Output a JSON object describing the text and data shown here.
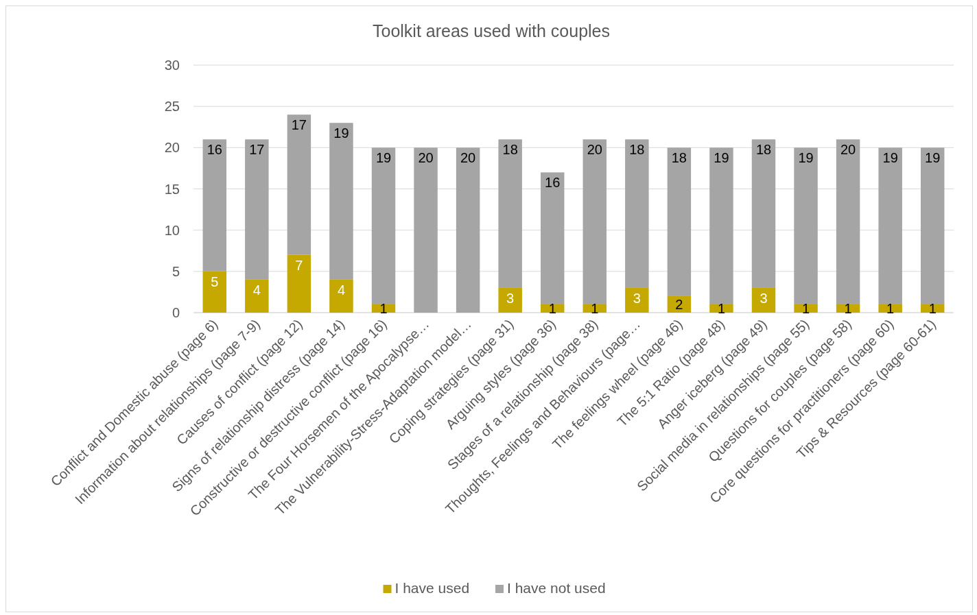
{
  "chart_data": {
    "type": "bar",
    "title": "Toolkit areas used with couples",
    "stacked": true,
    "categories": [
      "Conflict and Domestic abuse (page 6)",
      "Information about relationships (page 7-9)",
      "Causes of conflict (page 12)",
      "Signs of relationship distress (page 14)",
      "Constructive or destructive conflict (page 16)",
      "The Four Horsemen of the Apocalypse…",
      "The Vulnerability-Stress-Adaptation model…",
      "Coping strategies (page 31)",
      "Arguing styles (page 36)",
      "Stages of a relationship (page 38)",
      "Thoughts, Feelings and Behaviours (page…",
      "The feelings wheel (page 46)",
      "The 5:1 Ratio (page 48)",
      "Anger iceberg (page 49)",
      "Social media in relationships (page 55)",
      "Questions for couples (page 58)",
      "Core questions for practitioners (page 60)",
      "Tips & Resources (page 60-61)"
    ],
    "series": [
      {
        "name": "I have used",
        "color": "#c5a800",
        "values": [
          5,
          4,
          7,
          4,
          1,
          0,
          0,
          3,
          1,
          1,
          3,
          2,
          1,
          3,
          1,
          1,
          1,
          1
        ],
        "value_labels": [
          "5",
          "4",
          "7",
          "4",
          "1",
          null,
          null,
          "3",
          "1",
          "1",
          "3",
          "2",
          "1",
          "3",
          "1",
          "1",
          "1",
          "1"
        ]
      },
      {
        "name": "I have not used",
        "color": "#a5a5a5",
        "values": [
          16,
          17,
          17,
          19,
          19,
          20,
          20,
          18,
          16,
          20,
          18,
          18,
          19,
          18,
          19,
          20,
          19,
          19
        ],
        "value_labels": [
          "16",
          "17",
          "17",
          "19",
          "19",
          "20",
          "20",
          "18",
          "16",
          "20",
          "18",
          "18",
          "19",
          "18",
          "19",
          "20",
          "19",
          "19"
        ]
      }
    ],
    "ylim": [
      0,
      30
    ],
    "yticks": [
      0,
      5,
      10,
      15,
      20,
      25,
      30
    ],
    "grid": "y",
    "legend": "bottom"
  }
}
